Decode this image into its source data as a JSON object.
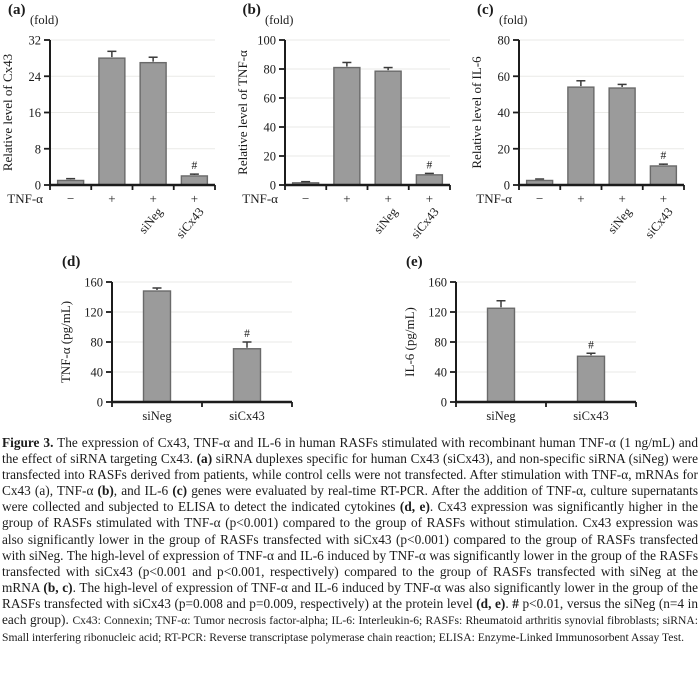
{
  "colors": {
    "bar_fill": "#9b9b9b",
    "bar_border": "#6a6a6a",
    "error_bar": "#3a3a3a",
    "axis": "#1c1c1c",
    "grid": "#eaeae7",
    "text": "#1b1b1b",
    "background": "#ffffff"
  },
  "chart_data": [
    {
      "panel": "(a)",
      "type": "bar",
      "unit": "(fold)",
      "ylabel": "Relative level of Cx43",
      "ylim": [
        0,
        32
      ],
      "yticks": [
        0,
        8,
        16,
        24,
        32
      ],
      "grid": true,
      "x_header": "TNF-α",
      "x_symbols": [
        "−",
        "+",
        "+",
        "+"
      ],
      "x_rotated_labels": [
        "",
        "",
        "siNeg",
        "siCx43"
      ],
      "categories": [
        "TNF-α −",
        "TNF-α +",
        "TNF-α + siNeg",
        "TNF-α + siCx43"
      ],
      "values": [
        1,
        28,
        27,
        2
      ],
      "errors": [
        0.4,
        1.5,
        1.2,
        0.4
      ],
      "sig_markers": [
        {
          "index": 3,
          "symbol": "#"
        }
      ]
    },
    {
      "panel": "(b)",
      "type": "bar",
      "unit": "(fold)",
      "ylabel": "Relative level of TNF-α",
      "ylim": [
        0,
        100
      ],
      "yticks": [
        0,
        20,
        40,
        60,
        80,
        100
      ],
      "grid": true,
      "x_header": "TNF-α",
      "x_symbols": [
        "−",
        "+",
        "+",
        "+"
      ],
      "x_rotated_labels": [
        "",
        "",
        "siNeg",
        "siCx43"
      ],
      "categories": [
        "TNF-α −",
        "TNF-α +",
        "TNF-α + siNeg",
        "TNF-α + siCx43"
      ],
      "values": [
        1.5,
        81,
        78.5,
        7
      ],
      "errors": [
        0.8,
        3.5,
        2.5,
        1
      ],
      "sig_markers": [
        {
          "index": 3,
          "symbol": "#"
        }
      ]
    },
    {
      "panel": "(c)",
      "type": "bar",
      "unit": "(fold)",
      "ylabel": "Relative level of IL-6",
      "ylim": [
        0,
        80
      ],
      "yticks": [
        0,
        20,
        40,
        60,
        80
      ],
      "grid": true,
      "x_header": "TNF-α",
      "x_symbols": [
        "−",
        "+",
        "+",
        "+"
      ],
      "x_rotated_labels": [
        "",
        "",
        "siNeg",
        "siCx43"
      ],
      "categories": [
        "TNF-α −",
        "TNF-α +",
        "TNF-α + siNeg",
        "TNF-α + siCx43"
      ],
      "values": [
        2.5,
        54,
        53.5,
        10.5
      ],
      "errors": [
        0.8,
        3.5,
        2,
        1
      ],
      "sig_markers": [
        {
          "index": 3,
          "symbol": "#"
        }
      ]
    },
    {
      "panel": "(d)",
      "type": "bar",
      "unit": "",
      "ylabel": "TNF-α (pg/mL)",
      "ylim": [
        0,
        160
      ],
      "yticks": [
        0,
        40,
        80,
        120,
        160
      ],
      "grid": true,
      "x_labels": [
        "siNeg",
        "siCx43"
      ],
      "categories": [
        "siNeg",
        "siCx43"
      ],
      "values": [
        148,
        71
      ],
      "errors": [
        4,
        9
      ],
      "sig_markers": [
        {
          "index": 1,
          "symbol": "#"
        }
      ]
    },
    {
      "panel": "(e)",
      "type": "bar",
      "unit": "",
      "ylabel": "IL-6 (pg/mL)",
      "ylim": [
        0,
        160
      ],
      "yticks": [
        0,
        40,
        80,
        120,
        160
      ],
      "grid": true,
      "x_labels": [
        "siNeg",
        "siCx43"
      ],
      "categories": [
        "siNeg",
        "siCx43"
      ],
      "values": [
        125,
        61
      ],
      "errors": [
        10,
        4
      ],
      "sig_markers": [
        {
          "index": 1,
          "symbol": "#"
        }
      ]
    }
  ],
  "caption": {
    "segments": [
      {
        "text": "Figure 3.",
        "style": "bold"
      },
      {
        "text": " The expression of Cx43, TNF-α and IL-6 in human RASFs stimulated with recombinant human TNF-α (1 ng/mL) and the effect of siRNA targeting Cx43. ",
        "style": "normal"
      },
      {
        "text": "(a)",
        "style": "bold"
      },
      {
        "text": " siRNA duplexes specific for human Cx43 (siCx43), and non-specific siRNA (siNeg) were transfected into RASFs derived from patients, while control cells were not transfected. After stimulation with TNF-α, mRNAs for Cx43 (a), TNF-α ",
        "style": "normal"
      },
      {
        "text": "(b)",
        "style": "bold"
      },
      {
        "text": ", and IL-6 ",
        "style": "normal"
      },
      {
        "text": "(c)",
        "style": "bold"
      },
      {
        "text": " genes were evaluated by real-time RT-PCR. After the addition of TNF-α, culture supernatants were collected and subjected to ELISA to detect the indicated cytokines ",
        "style": "normal"
      },
      {
        "text": "(d, e)",
        "style": "bold"
      },
      {
        "text": ". Cx43 expression was significantly higher in the group of RASFs stimulated with TNF-α (p<0.001) compared to the group of RASFs without stimulation. Cx43 expression was also significantly lower in the group of RASFs transfected with siCx43 (p<0.001) compared to the group of RASFs transfected with siNeg. The high-level of expression of TNF-α and IL-6 induced by TNF-α was significantly lower in the group of the RASFs transfected with siCx43 (p<0.001 and p<0.001, respectively) compared to the group of RASFs transfected with siNeg at the mRNA ",
        "style": "normal"
      },
      {
        "text": "(b, c)",
        "style": "bold"
      },
      {
        "text": ". The high-level of expression of TNF-α and IL-6 induced by TNF-α was also significantly lower in the group of the RASFs transfected with siCx43 (p=0.008 and p=0.009, respectively) at the protein level ",
        "style": "normal"
      },
      {
        "text": "(d, e)",
        "style": "bold"
      },
      {
        "text": ". ",
        "style": "normal"
      },
      {
        "text": "#",
        "style": "bold"
      },
      {
        "text": " p<0.01, versus the siNeg (n=4 in each group). ",
        "style": "normal"
      },
      {
        "text": "Cx43: Connexin; TNF-α: Tumor necrosis factor-alpha; IL-6: Interleukin-6; RASFs: Rheumatoid arthritis synovial fibroblasts; siRNA: Small interfering ribonucleic acid; RT-PCR: Reverse transcriptase polymerase chain reaction; ELISA: Enzyme-Linked Immunosorbent Assay Test.",
        "style": "small"
      }
    ]
  }
}
